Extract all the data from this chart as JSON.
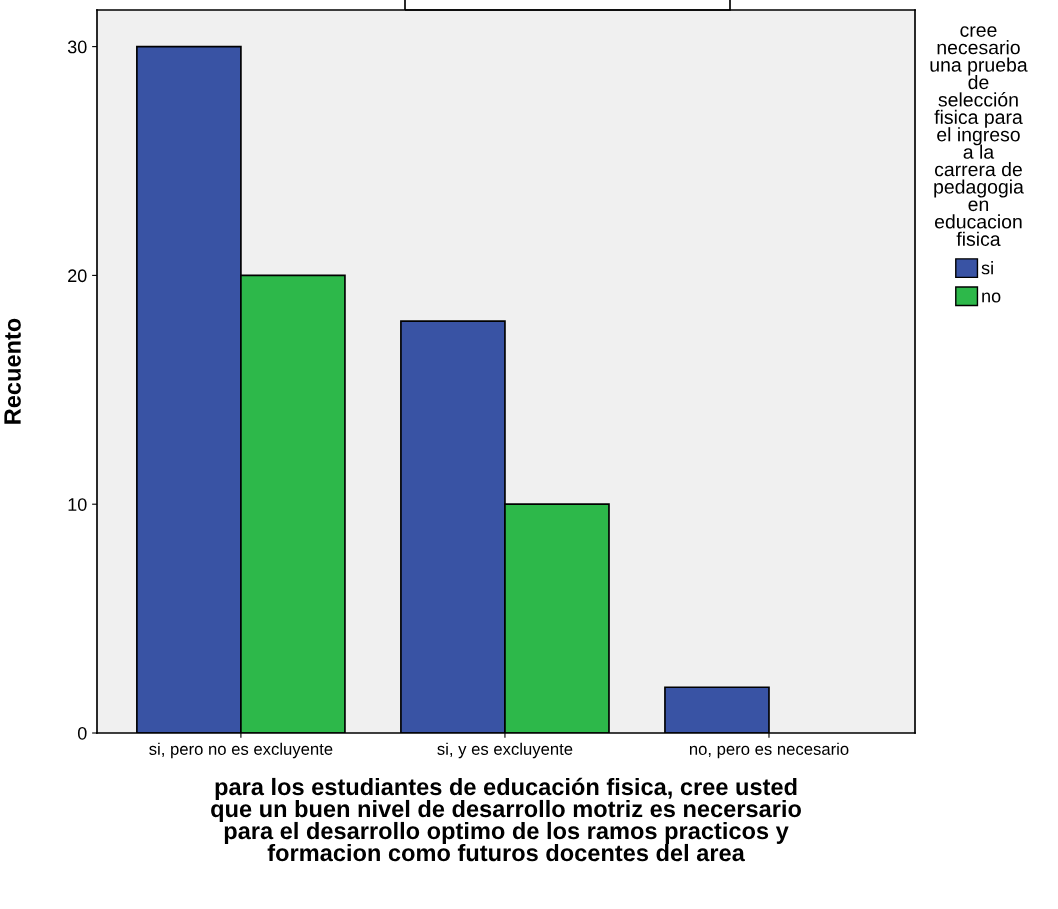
{
  "chart_data": {
    "type": "bar",
    "xlabel": "para los estudiantes de educación fisica, cree usted\nque un buen nivel de desarrollo motriz es necersario\npara el desarrollo optimo de los ramos practicos y\nformacion como futuros docentes del area",
    "ylabel": "Recuento",
    "legend_title": "cree\nnecesario\nuna prueba\nde\nselección\nfisica para\nel ingreso\na la\ncarrera de\npedagogia\nen\neducacion\nfisica",
    "categories": [
      "si, pero no es excluyente",
      "si, y es excluyente",
      "no, pero es necesario"
    ],
    "series": [
      {
        "name": "si",
        "color": "#3953a4",
        "values": [
          30,
          18,
          2
        ]
      },
      {
        "name": "no",
        "color": "#2db84a",
        "values": [
          20,
          10,
          null
        ]
      }
    ],
    "ylim": [
      0,
      31.6
    ],
    "yticks": [
      0,
      10,
      20,
      30
    ],
    "grid": false,
    "legend": "right"
  }
}
